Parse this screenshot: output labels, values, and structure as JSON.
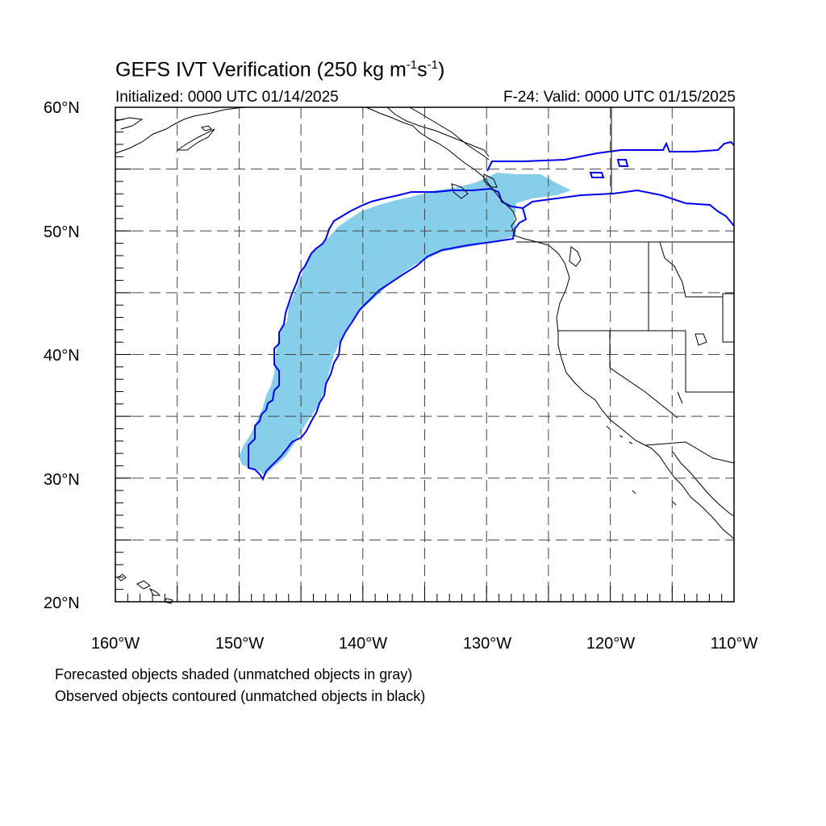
{
  "title": {
    "main": "GEFS IVT Verification (250 kg m",
    "sup1": "-1",
    "mid": "s",
    "sup2": "-1",
    "end": ")"
  },
  "initialized": "Initialized: 0000 UTC 01/14/2025",
  "valid": "F-24: Valid: 0000 UTC 01/15/2025",
  "lat_labels": [
    "60°N",
    "50°N",
    "40°N",
    "30°N",
    "20°N"
  ],
  "lon_labels": [
    "160°W",
    "150°W",
    "140°W",
    "130°W",
    "120°W",
    "110°W"
  ],
  "notes": [
    "Forecasted objects shaded (unmatched objects in gray)",
    "Observed objects contoured (unmatched objects in black)"
  ],
  "colors": {
    "forecast_fill": "#87ceea",
    "observed_contour": "#0000ee",
    "grid": "#444444",
    "coast": "#000000"
  },
  "map": {
    "projection": "cylindrical-equidistant",
    "lon_range": [
      -160,
      -110
    ],
    "lat_range": [
      20,
      60
    ],
    "grid_spacing_deg": 5
  }
}
